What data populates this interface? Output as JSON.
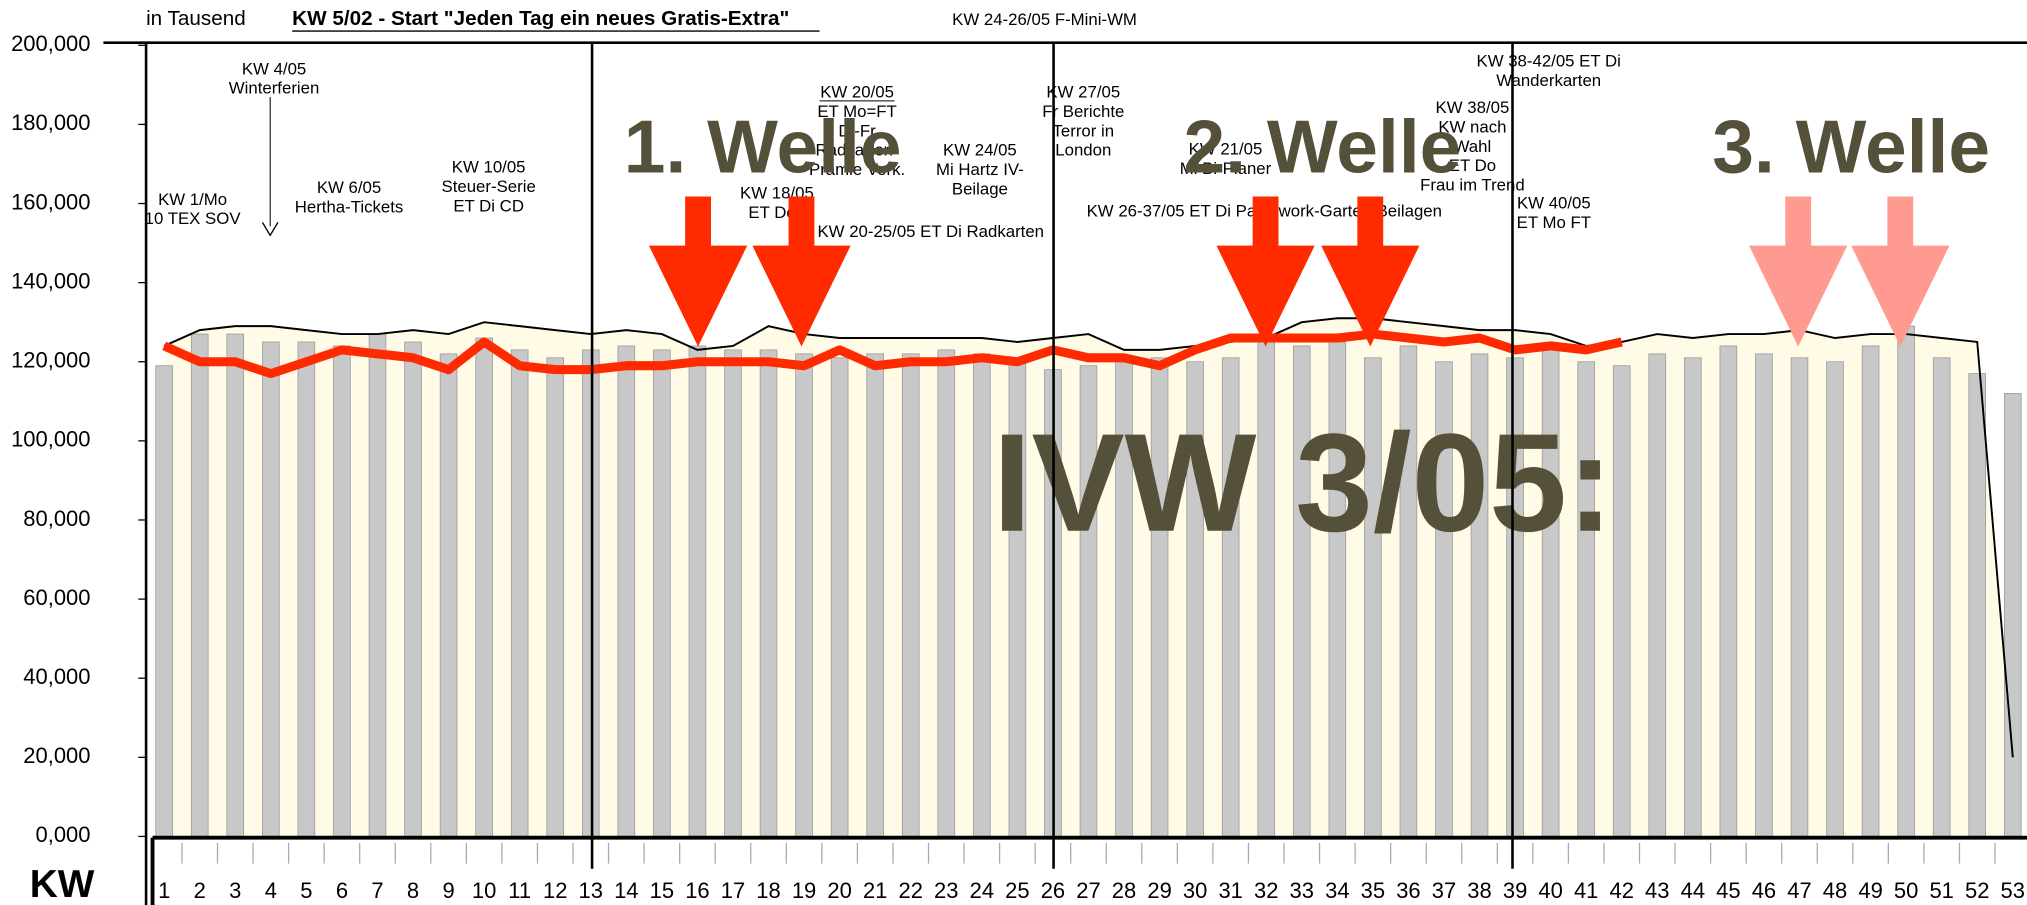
{
  "chart_data": {
    "type": "bar",
    "title": "KW 5/02 - Start \"Jeden Tag ein neues Gratis-Extra\"",
    "ylabel": "in Tausend",
    "xlabel": "KW",
    "categories": [
      "1",
      "2",
      "3",
      "4",
      "5",
      "6",
      "7",
      "8",
      "9",
      "10",
      "11",
      "12",
      "13",
      "14",
      "15",
      "16",
      "17",
      "18",
      "19",
      "20",
      "21",
      "22",
      "23",
      "24",
      "25",
      "26",
      "27",
      "28",
      "29",
      "30",
      "31",
      "32",
      "33",
      "34",
      "35",
      "36",
      "37",
      "38",
      "39",
      "40",
      "41",
      "42",
      "43",
      "44",
      "45",
      "46",
      "47",
      "48",
      "49",
      "50",
      "51",
      "52",
      "53"
    ],
    "series": [
      {
        "kind": "bar",
        "color": "#c8c8c8",
        "values": [
          119000,
          127000,
          127000,
          125000,
          125000,
          124000,
          127000,
          125000,
          122000,
          126000,
          123000,
          121000,
          123000,
          124000,
          123000,
          124000,
          123000,
          123000,
          122000,
          121000,
          122000,
          122000,
          123000,
          122000,
          120000,
          118000,
          119000,
          120000,
          121000,
          120000,
          121000,
          126000,
          124000,
          125000,
          121000,
          124000,
          120000,
          122000,
          121000,
          123000,
          120000,
          119000,
          122000,
          121000,
          124000,
          122000,
          121000,
          120000,
          124000,
          129000,
          121000,
          117000,
          112000
        ]
      },
      {
        "kind": "area",
        "color": "#fffbe6",
        "values": [
          124000,
          128000,
          129000,
          129000,
          128000,
          127000,
          127000,
          128000,
          127000,
          130000,
          129000,
          128000,
          127000,
          128000,
          127000,
          123000,
          124000,
          129000,
          127000,
          126000,
          126000,
          126000,
          126000,
          126000,
          125000,
          126000,
          127000,
          123000,
          123000,
          124000,
          125000,
          126000,
          130000,
          131000,
          131000,
          130000,
          129000,
          128000,
          128000,
          127000,
          124000,
          125000,
          127000,
          126000,
          127000,
          127000,
          128000,
          126000,
          127000,
          127000,
          126000,
          125000,
          20000
        ]
      },
      {
        "kind": "line",
        "color": "#ff2a00",
        "values": [
          124000,
          120000,
          120000,
          117000,
          120000,
          123000,
          122000,
          121000,
          118000,
          125000,
          119000,
          118000,
          118000,
          119000,
          119000,
          120000,
          120000,
          120000,
          119000,
          123000,
          119000,
          120000,
          120000,
          121000,
          120000,
          123000,
          121000,
          121000,
          119000,
          123000,
          126000,
          126000,
          126000,
          126000,
          127000,
          126000,
          125000,
          126000,
          123000,
          124000,
          123000,
          125000,
          null,
          null,
          null,
          null,
          null,
          null,
          null,
          null,
          null,
          null,
          null
        ]
      }
    ],
    "ylim": [
      0,
      200000
    ],
    "yticks": [
      {
        "value": 0,
        "label": "0,000"
      },
      {
        "value": 20000,
        "label": "20,000"
      },
      {
        "value": 40000,
        "label": "40,000"
      },
      {
        "value": 60000,
        "label": "60,000"
      },
      {
        "value": 80000,
        "label": "80,000"
      },
      {
        "value": 100000,
        "label": "100,000"
      },
      {
        "value": 120000,
        "label": "120,000"
      },
      {
        "value": 140000,
        "label": "140,000"
      },
      {
        "value": 160000,
        "label": "160,000"
      },
      {
        "value": 180000,
        "label": "180,000"
      },
      {
        "value": 200000,
        "label": "200,000"
      }
    ],
    "annotations": [
      [
        "KW 24-26/05 F-Mini-WM"
      ],
      [
        "KW 4/05",
        "Winterferien"
      ],
      [
        "KW 1/Mo",
        "10 TEX SOV"
      ],
      [
        "KW 6/05",
        "Hertha-Tickets"
      ],
      [
        "KW 10/05",
        "Steuer-Serie",
        "ET Di CD"
      ],
      [
        "KW 20/05",
        "ET Mo=FT",
        "Di-Fr",
        "Radkarten-",
        "Prämie Verk."
      ],
      [
        "KW 18/05",
        "ET Do="
      ],
      [
        "KW 20-25/05 ET Di Radkarten"
      ],
      [
        "KW 24/05",
        "Mi Hartz IV-",
        "Beilage"
      ],
      [
        "KW 27/05",
        "Fr Berichte",
        "Terror in",
        "London"
      ],
      [
        "KW 21/05",
        "Mi Bi-Planer"
      ],
      [
        "KW 26-37/05 ET Di Patchwork-Garten-Beilagen"
      ],
      [
        "KW 38/05",
        "KW nach",
        "Wahl",
        "ET Do",
        "Frau im Trend"
      ],
      [
        "KW 38-42/05 ET Di",
        "Wanderkarten"
      ],
      [
        "KW 40/05",
        "ET Mo FT"
      ]
    ],
    "waves": [
      "1. Welle",
      "2. Welle",
      "3. Welle"
    ],
    "headline": "IVW 3/05:"
  }
}
